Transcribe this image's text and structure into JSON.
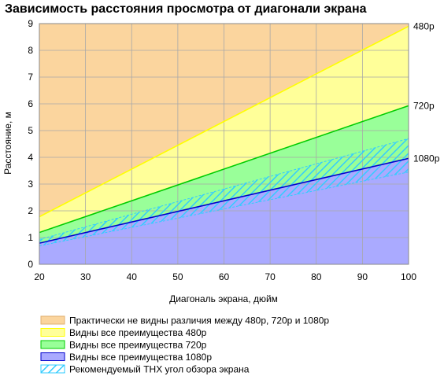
{
  "chart_data": {
    "type": "area",
    "title": "Зависимость расстояния просмотра от диагонали экрана",
    "xlabel": "Диагональ экрана, дюйм",
    "ylabel": "Расстояние, м",
    "xlim": [
      20,
      100
    ],
    "ylim": [
      0,
      9
    ],
    "x_ticks": [
      20,
      30,
      40,
      50,
      60,
      70,
      80,
      90,
      100
    ],
    "y_ticks": [
      0,
      1,
      2,
      3,
      4,
      5,
      6,
      7,
      8,
      9
    ],
    "grid": true,
    "colors": {
      "region_480p": "#ffff99",
      "region_720p": "#99ff99",
      "region_1080p": "#aaaaff",
      "region_no_difference": "#fbd59e",
      "thx_hatch": "#33ccff",
      "line_480p": "#ffff00",
      "line_720p": "#00cc00",
      "line_1080p": "#0000cc",
      "grid": "#a8a8a8",
      "axis": "#555555"
    },
    "series": [
      {
        "name": "480p",
        "x": [
          20,
          100
        ],
        "y": [
          1.78,
          8.9
        ],
        "color": "#ffff00"
      },
      {
        "name": "720p",
        "x": [
          20,
          100
        ],
        "y": [
          1.19,
          5.93
        ],
        "color": "#00cc00"
      },
      {
        "name": "1080p",
        "x": [
          20,
          100
        ],
        "y": [
          0.79,
          3.96
        ],
        "color": "#0000cc"
      }
    ],
    "thx_band": {
      "x": [
        20,
        100
      ],
      "y_low": [
        0.69,
        3.45
      ],
      "y_high": [
        0.93,
        4.7
      ]
    },
    "legend": {
      "position": "bottom",
      "entries": [
        {
          "label": "Практически не видны различия между 480p, 720p и 1080p",
          "swatch": "no_difference"
        },
        {
          "label": "Видны все преимущества 480p",
          "swatch": "480p"
        },
        {
          "label": "Видны все преимущества 720p",
          "swatch": "720p"
        },
        {
          "label": "Видны все преимущества 1080p",
          "swatch": "1080p"
        },
        {
          "label": "Рекомендуемый THX угол обзора экрана",
          "swatch": "thx"
        }
      ]
    }
  }
}
